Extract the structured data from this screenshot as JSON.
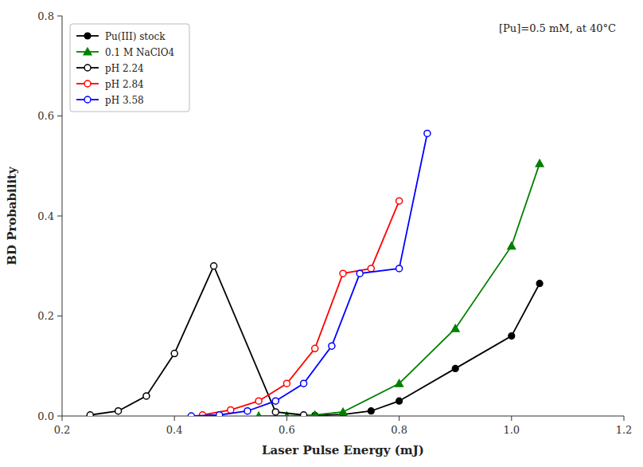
{
  "chart_data": {
    "type": "line",
    "annotation": "[Pu]=0.5 mM, at 40°C",
    "x_label": "Laser Pulse Energy (mJ)",
    "y_label": "BD Probability",
    "xlim": [
      0.2,
      1.2
    ],
    "ylim": [
      0.0,
      0.8
    ],
    "xticks": [
      0.2,
      0.4,
      0.6,
      0.8,
      {
        "value": 1.0,
        "label": "1.0"
      },
      1.2
    ],
    "yticks": [
      {
        "value": 0.0,
        "label": "0.0"
      },
      0.2,
      0.4,
      0.6,
      0.8
    ],
    "grid": false,
    "legend": "upper-left",
    "series": [
      {
        "name": "Pu(III) stock",
        "color": "#000000",
        "marker": "circle",
        "line_style": "solid",
        "x": [
          0.65,
          0.7,
          0.75,
          0.8,
          0.9,
          1.0,
          1.05
        ],
        "values": [
          0.001,
          0.003,
          0.01,
          0.03,
          0.095,
          0.16,
          0.265
        ]
      },
      {
        "name": "0.1 M NaClO4",
        "color": "#008000",
        "marker": "triangle",
        "line_style": "solid",
        "x": [
          0.55,
          0.6,
          0.65,
          0.7,
          0.8,
          0.9,
          1.0,
          1.05
        ],
        "values": [
          0.0,
          0.0,
          0.002,
          0.008,
          0.065,
          0.175,
          0.34,
          0.505
        ]
      },
      {
        "name": "pH 2.24",
        "color": "#000000",
        "marker": "open-circle",
        "line_style": "solid",
        "x": [
          0.25,
          0.3,
          0.35,
          0.4,
          0.47,
          0.58,
          0.63
        ],
        "values": [
          0.002,
          0.01,
          0.04,
          0.125,
          0.3,
          0.008,
          0.002
        ]
      },
      {
        "name": "pH 2.84",
        "color": "#ff0000",
        "marker": "open-circle",
        "line_style": "solid",
        "x": [
          0.45,
          0.5,
          0.55,
          0.6,
          0.65,
          0.7,
          0.75,
          0.8
        ],
        "values": [
          0.002,
          0.012,
          0.03,
          0.065,
          0.135,
          0.285,
          0.295,
          0.43
        ]
      },
      {
        "name": "pH 3.58",
        "color": "#0000ff",
        "marker": "open-circle",
        "line_style": "solid",
        "x": [
          0.43,
          0.48,
          0.53,
          0.58,
          0.63,
          0.68,
          0.73,
          0.8,
          0.85
        ],
        "values": [
          0.0,
          0.002,
          0.01,
          0.03,
          0.065,
          0.14,
          0.285,
          0.295,
          0.565
        ]
      }
    ]
  }
}
